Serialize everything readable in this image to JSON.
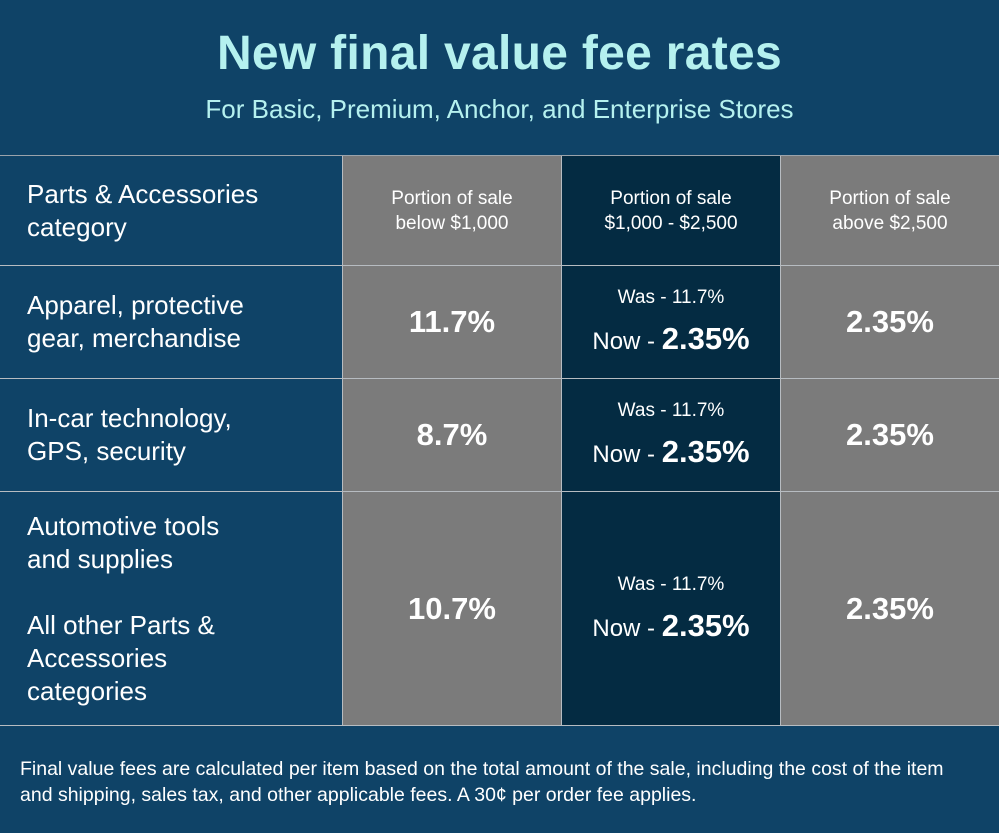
{
  "title": "New final value fee rates",
  "subtitle": "For Basic, Premium, Anchor, and Enterprise Stores",
  "headers": [
    "Parts & Accessories category",
    "Portion of sale below $1,000",
    "Portion of sale $1,000 - $2,500",
    "Portion of sale above $2,500"
  ],
  "header_lines": {
    "c0": [
      "Parts & Accessories",
      "category"
    ],
    "c1": [
      "Portion of sale",
      "below $1,000"
    ],
    "c2": [
      "Portion of sale",
      "$1,000 - $2,500"
    ],
    "c3": [
      "Portion of sale",
      "above $2,500"
    ]
  },
  "rows": [
    {
      "label_lines": [
        "Apparel, protective",
        "gear, merchandise"
      ],
      "below": "11.7%",
      "was": "Was - 11.7%",
      "now_prefix": "Now - ",
      "now_value": "2.35%",
      "above": "2.35%"
    },
    {
      "label_lines": [
        "In-car technology,",
        "GPS, security"
      ],
      "below": "8.7%",
      "was": "Was - 11.7%",
      "now_prefix": "Now - ",
      "now_value": "2.35%",
      "above": "2.35%"
    },
    {
      "label_lines": [
        "Automotive tools",
        "and supplies"
      ],
      "label_lines_b": [
        "All other Parts &",
        "Accessories",
        "categories"
      ],
      "below": "10.7%",
      "was": "Was - 11.7%",
      "now_prefix": "Now - ",
      "now_value": "2.35%",
      "above": "2.35%"
    }
  ],
  "footnote": "Final value fees are calculated per item based on the total amount of the sale, including the cost of the item and shipping, sales tax, and other applicable fees. A 30¢ per order fee applies.",
  "colors": {
    "background": "#0f4367",
    "title": "#b5f1ef",
    "gray_cell": "#7b7b7b",
    "dark_cell": "#042b42"
  }
}
